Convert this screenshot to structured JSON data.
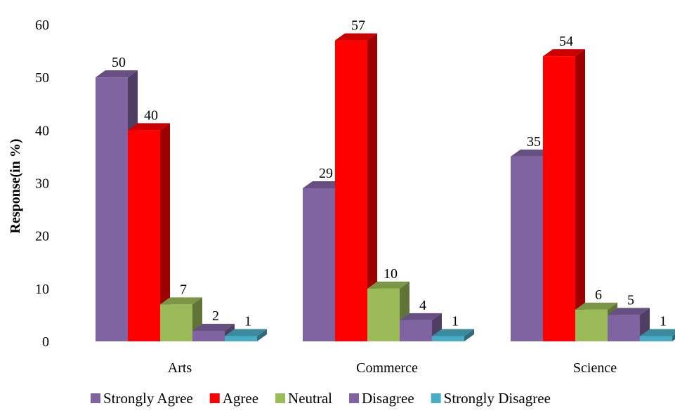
{
  "chart_data": {
    "type": "bar",
    "title": "",
    "xlabel": "",
    "ylabel": "Response(in %)",
    "ylim": [
      0,
      60
    ],
    "yticks": [
      0,
      10,
      20,
      30,
      40,
      50,
      60
    ],
    "categories": [
      "Arts",
      "Commerce",
      "Science"
    ],
    "series": [
      {
        "name": "Strongly Agree",
        "values": [
          50,
          29,
          35
        ],
        "color": "#8064A2"
      },
      {
        "name": "Agree",
        "values": [
          40,
          57,
          54
        ],
        "color": "#FF0000"
      },
      {
        "name": "Neutral",
        "values": [
          7,
          10,
          6
        ],
        "color": "#9BBB59"
      },
      {
        "name": "Disagree",
        "values": [
          2,
          4,
          5
        ],
        "color": "#8064A2"
      },
      {
        "name": "Strongly Disagree",
        "values": [
          1,
          1,
          1
        ],
        "color": "#4BACC6"
      }
    ],
    "grid": false,
    "legend_position": "bottom",
    "style": "3d"
  }
}
